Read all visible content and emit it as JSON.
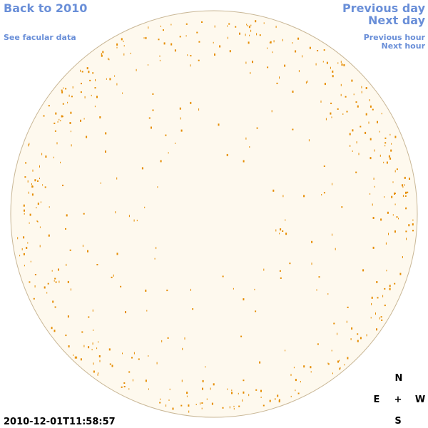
{
  "nav": {
    "back": "Back to 2010",
    "facular_data": "See facular data",
    "previous_day": "Previous day",
    "next_day": "Next day",
    "previous_hour": "Previous hour",
    "next_hour": "Next hour"
  },
  "timestamp": "2010-12-01T11:58:57",
  "compass": {
    "north": "N",
    "east": "E",
    "center": "+",
    "west": "W",
    "south": "S"
  }
}
